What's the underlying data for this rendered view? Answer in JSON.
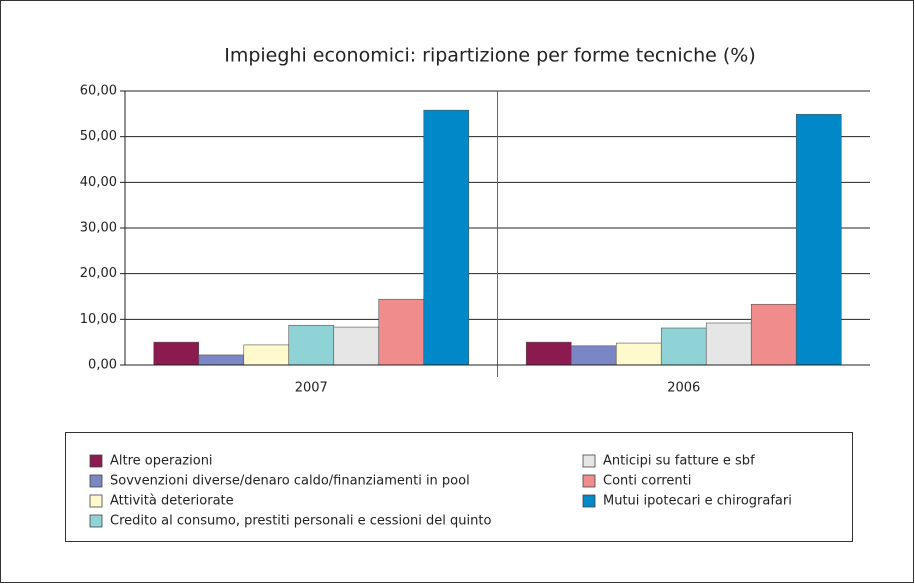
{
  "chart_data": {
    "type": "bar",
    "title": "Impieghi economici: ripartizione per forme tecniche (%)",
    "categories": [
      "2007",
      "2006"
    ],
    "series": [
      {
        "name": "Altre operazioni",
        "color": "#8b1a4f",
        "values": [
          5.0,
          5.0
        ]
      },
      {
        "name": "Sovvenzioni diverse/denaro caldo/finanziamenti in pool",
        "color": "#7b86c4",
        "values": [
          2.2,
          4.2
        ]
      },
      {
        "name": "Attività deteriorate",
        "color": "#fffacd",
        "values": [
          4.4,
          4.8
        ]
      },
      {
        "name": "Credito al consumo, prestiti personali e cessioni del quinto",
        "color": "#8fd3d6",
        "values": [
          8.7,
          8.1
        ]
      },
      {
        "name": "Anticipi su fatture e sbf",
        "color": "#e6e6e6",
        "values": [
          8.3,
          9.2
        ]
      },
      {
        "name": "Conti correnti",
        "color": "#f08c8c",
        "values": [
          14.4,
          13.3
        ]
      },
      {
        "name": "Mutui ipotecari e chirografari",
        "color": "#0088c8",
        "values": [
          55.8,
          54.9
        ]
      }
    ],
    "ylim": [
      0,
      60
    ],
    "yticks": [
      {
        "value": 0,
        "label": "0,00"
      },
      {
        "value": 10,
        "label": "10,00"
      },
      {
        "value": 20,
        "label": "20,00"
      },
      {
        "value": 30,
        "label": "30,00"
      },
      {
        "value": 40,
        "label": "40,00"
      },
      {
        "value": 50,
        "label": "50,00"
      },
      {
        "value": 60,
        "label": "60,00"
      }
    ],
    "grid": true
  }
}
